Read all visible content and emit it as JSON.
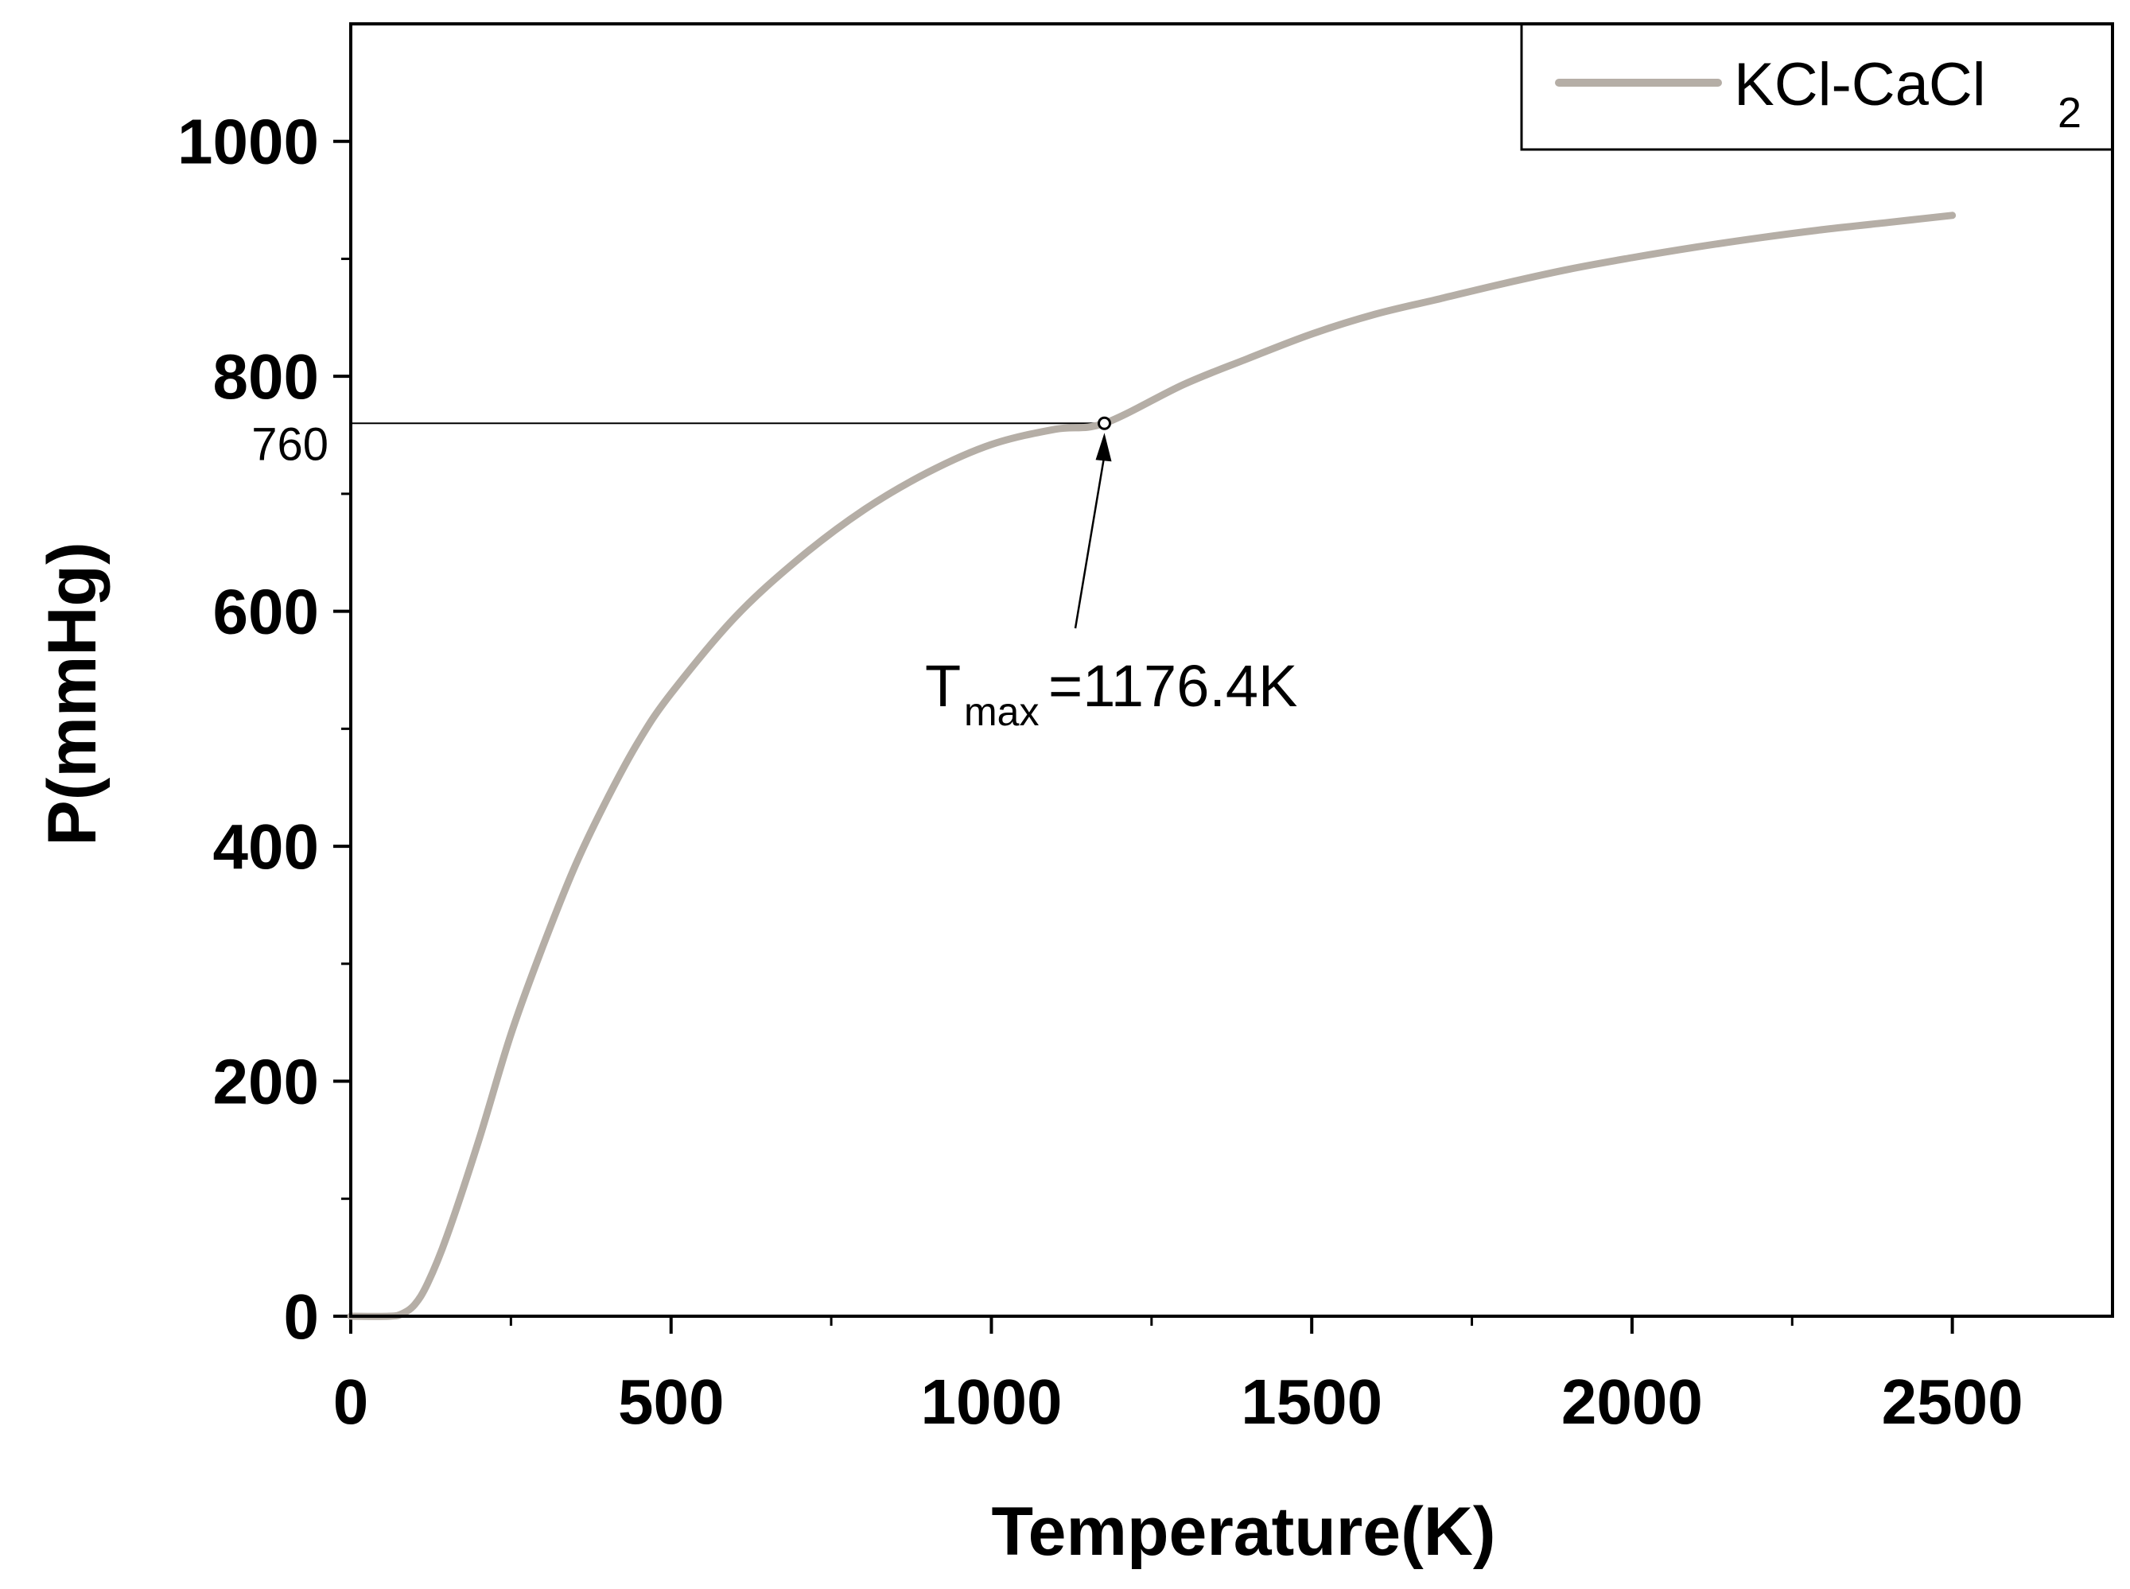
{
  "chart_data": {
    "type": "line",
    "xlabel": "Temperature(K)",
    "ylabel": "P(mmHg)",
    "xlim": [
      0,
      2750
    ],
    "ylim": [
      0,
      1100
    ],
    "xticks": [
      0,
      500,
      1000,
      1500,
      2000,
      2500
    ],
    "yticks": [
      0,
      200,
      400,
      600,
      800,
      1000
    ],
    "series": [
      {
        "name": "KCl-CaCl2",
        "legend_main": "KCl-CaCl",
        "legend_sub": "2",
        "color": "#b5aea6",
        "x": [
          0,
          60,
          80,
          100,
          120,
          150,
          200,
          250,
          300,
          350,
          400,
          450,
          500,
          600,
          700,
          800,
          900,
          1000,
          1100,
          1176.4,
          1300,
          1400,
          1500,
          1600,
          1700,
          1800,
          1900,
          2000,
          2100,
          2200,
          2300,
          2400,
          2500
        ],
        "y": [
          0,
          0,
          2,
          10,
          28,
          68,
          150,
          240,
          315,
          383,
          440,
          490,
          530,
          595,
          645,
          686,
          718,
          742,
          755,
          760,
          793,
          815,
          836,
          853,
          866,
          879,
          891,
          901,
          910,
          918,
          925,
          931,
          937
        ]
      }
    ],
    "reference": {
      "y": 760,
      "label": "760"
    },
    "annotation": {
      "x": 1176.4,
      "y": 760,
      "label_main": "T",
      "label_sub": "max",
      "label_value": "=1176.4K"
    },
    "legend_position": "top-right"
  }
}
